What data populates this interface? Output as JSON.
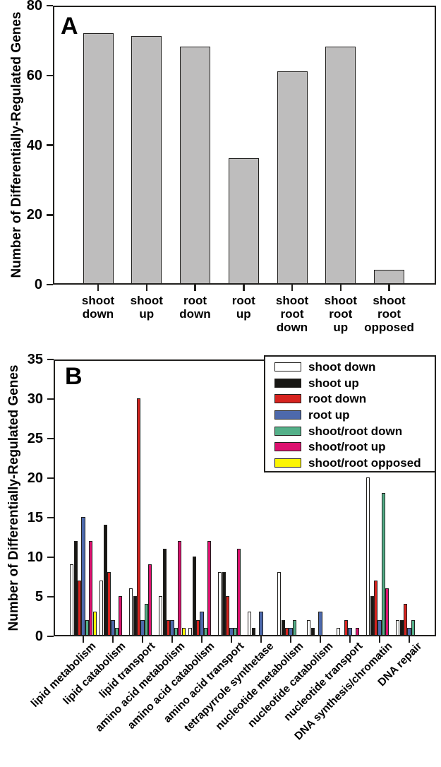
{
  "chart_data": [
    {
      "panel_label": "A",
      "type": "bar",
      "title": "",
      "ylabel": "Number of Differentially-Regulated Genes",
      "xlabel": "",
      "ylim": [
        0,
        80
      ],
      "yticks": [
        0,
        20,
        40,
        60,
        80
      ],
      "grid": false,
      "bar_color": "#bebdbd",
      "bar_edge_color": "#21201e",
      "categories": [
        "shoot down",
        "shoot up",
        "root down",
        "root up",
        "shoot root down",
        "shoot root up",
        "shoot root opposed"
      ],
      "values": [
        72,
        71,
        68,
        36,
        61,
        68,
        4
      ]
    },
    {
      "panel_label": "B",
      "type": "bar",
      "title": "",
      "ylabel": "Number of Differentially-Regulated Genes",
      "xlabel": "",
      "ylim": [
        0,
        35
      ],
      "yticks": [
        0,
        5,
        10,
        15,
        20,
        25,
        30,
        35
      ],
      "grid": false,
      "legend_position": "top-right",
      "categories": [
        "lipid metabolism",
        "lipid catabolism",
        "lipid transport",
        "amino acid metabolism",
        "amino acid catabolism",
        "amino acid transport",
        "tetrapyrrole synthetase",
        "nucleotide metabolism",
        "nucleotide catabolism",
        "nucleotide transport",
        "DNA synthesis/chromatin",
        "DNA repair"
      ],
      "series": [
        {
          "name": "shoot down",
          "color": "#ffffff",
          "values": [
            9,
            7,
            6,
            5,
            1,
            8,
            3,
            8,
            2,
            1,
            20,
            2
          ]
        },
        {
          "name": "shoot up",
          "color": "#181714",
          "values": [
            12,
            14,
            5,
            11,
            10,
            8,
            1,
            2,
            1,
            0,
            5,
            2
          ]
        },
        {
          "name": "root down",
          "color": "#d7231f",
          "values": [
            7,
            8,
            30,
            2,
            2,
            5,
            0,
            1,
            0,
            2,
            7,
            4
          ]
        },
        {
          "name": "root up",
          "color": "#4d69ac",
          "values": [
            15,
            2,
            2,
            2,
            3,
            1,
            3,
            1,
            3,
            1,
            2,
            1
          ]
        },
        {
          "name": "shoot/root down",
          "color": "#54b089",
          "values": [
            2,
            1,
            4,
            1,
            1,
            1,
            0,
            2,
            0,
            0,
            18,
            2
          ]
        },
        {
          "name": "shoot/root up",
          "color": "#dc116f",
          "values": [
            12,
            5,
            9,
            12,
            12,
            11,
            0,
            0,
            0,
            1,
            6,
            0
          ]
        },
        {
          "name": "shoot/root opposed",
          "color": "#fbf504",
          "values": [
            3,
            0,
            0,
            1,
            0,
            0,
            0,
            0,
            0,
            0,
            0,
            0
          ]
        }
      ]
    }
  ]
}
